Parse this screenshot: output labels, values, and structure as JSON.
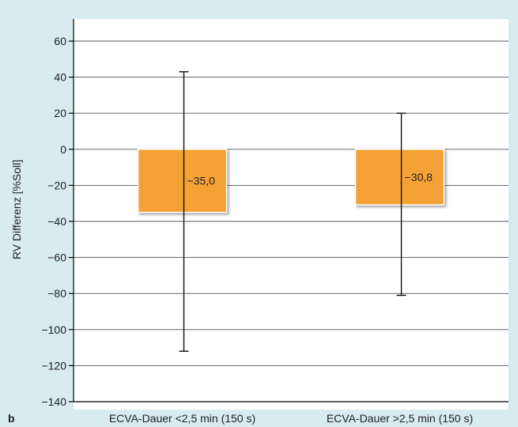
{
  "panel_label": "b",
  "chart_data": {
    "type": "bar",
    "ylabel": "RV Differenz [%Soll]",
    "xlabel": "",
    "ylim": [
      -140,
      70
    ],
    "yticks": [
      60,
      40,
      20,
      0,
      -20,
      -40,
      -60,
      -80,
      -100,
      -120,
      -140
    ],
    "ytick_labels": [
      "60",
      "40",
      "20",
      "0",
      "−20",
      "−40",
      "−60",
      "−80",
      "−100",
      "−120",
      "−140"
    ],
    "grid": true,
    "categories": [
      "ECVA-Dauer <2,5 min (150 s)",
      "ECVA-Dauer >2,5 min (150 s)"
    ],
    "values": [
      -35.0,
      -30.8
    ],
    "value_labels": [
      "−35,0",
      "−30,8"
    ],
    "error_bars": [
      {
        "low": -112,
        "high": 43
      },
      {
        "low": -81,
        "high": 20
      }
    ],
    "colors": {
      "bar": "#f4a235",
      "bar_border": "#ffffff",
      "background": "#d7ebf1",
      "plot_area": "#ffffff",
      "grid": "#555555",
      "axis": "#000000",
      "text": "#222222"
    }
  }
}
